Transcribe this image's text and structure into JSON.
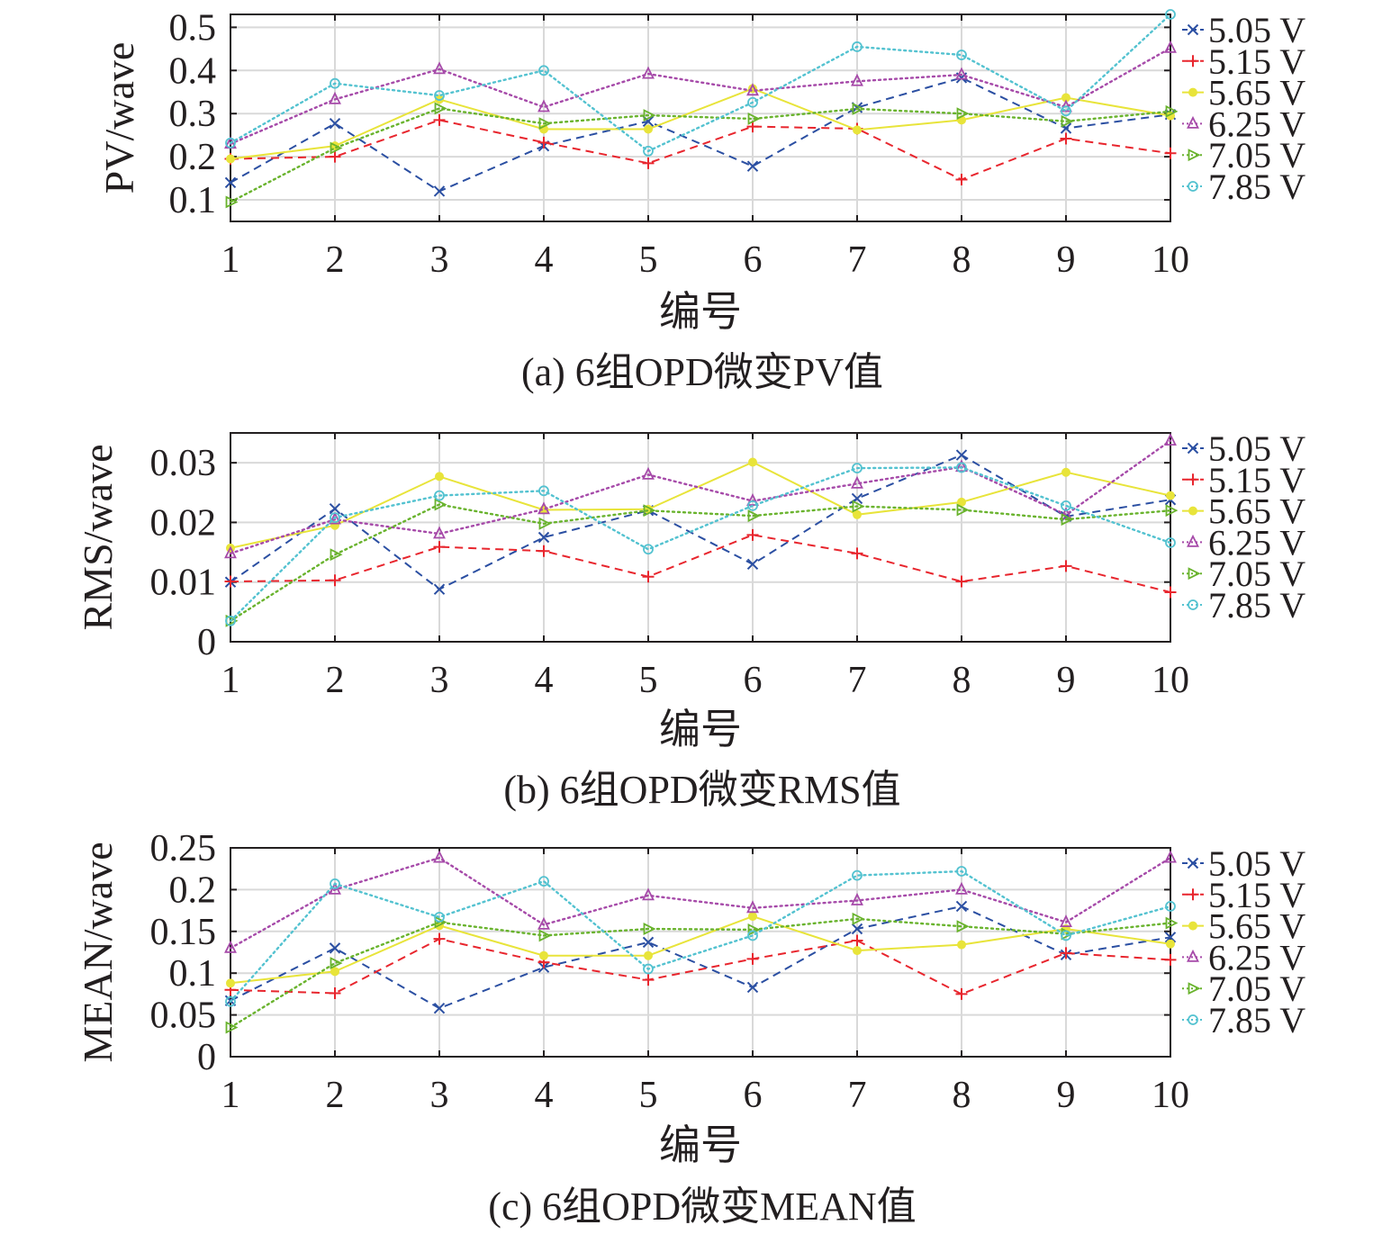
{
  "figure": {
    "series_names": [
      "5.05 V",
      "5.15 V",
      "5.65 V",
      "6.25 V",
      "7.05 V",
      "7.85 V"
    ],
    "series_colors": [
      "#2b4fa2",
      "#e8262e",
      "#e8e43a",
      "#a64aa9",
      "#69b32d",
      "#53c2d0"
    ],
    "series_markers": [
      "cross-x",
      "plus",
      "circle-filled",
      "triangle-up",
      "triangle-right",
      "circle-open"
    ],
    "series_line_styles": [
      "dashed",
      "dashed",
      "solid",
      "dotted",
      "dotted",
      "dotted"
    ]
  },
  "chart_data": [
    {
      "type": "line",
      "caption": "(a) 6组OPD微变PV值",
      "xlabel": "编号",
      "ylabel": "PV/wave",
      "x": [
        1,
        2,
        3,
        4,
        5,
        6,
        7,
        8,
        9,
        10
      ],
      "xlim": [
        1,
        10
      ],
      "ylim": [
        0.05,
        0.53
      ],
      "xticks": [
        "1",
        "2",
        "3",
        "4",
        "5",
        "6",
        "7",
        "8",
        "9",
        "10"
      ],
      "yticks": [
        {
          "value": 0.1,
          "label": "0.1"
        },
        {
          "value": 0.2,
          "label": "0.2"
        },
        {
          "value": 0.3,
          "label": "0.3"
        },
        {
          "value": 0.4,
          "label": "0.4"
        },
        {
          "value": 0.5,
          "label": "0.5"
        }
      ],
      "grid": true,
      "legend_position": "right",
      "series": [
        {
          "name": "5.05 V",
          "values": [
            0.14,
            0.277,
            0.12,
            0.225,
            0.282,
            0.178,
            0.314,
            0.383,
            0.266,
            0.298
          ]
        },
        {
          "name": "5.15 V",
          "values": [
            0.195,
            0.2,
            0.285,
            0.233,
            0.185,
            0.27,
            0.265,
            0.147,
            0.242,
            0.208
          ]
        },
        {
          "name": "5.65 V",
          "values": [
            0.195,
            0.225,
            0.333,
            0.264,
            0.264,
            0.358,
            0.262,
            0.285,
            0.337,
            0.295
          ]
        },
        {
          "name": "6.25 V",
          "values": [
            0.23,
            0.333,
            0.403,
            0.315,
            0.392,
            0.353,
            0.375,
            0.39,
            0.315,
            0.452
          ]
        },
        {
          "name": "7.05 V",
          "values": [
            0.095,
            0.22,
            0.312,
            0.277,
            0.296,
            0.288,
            0.311,
            0.3,
            0.282,
            0.305
          ]
        },
        {
          "name": "7.85 V",
          "values": [
            0.232,
            0.37,
            0.342,
            0.4,
            0.213,
            0.326,
            0.455,
            0.436,
            0.306,
            0.53
          ]
        }
      ]
    },
    {
      "type": "line",
      "caption": "(b) 6组OPD微变RMS值",
      "xlabel": "编号",
      "ylabel": "RMS/wave",
      "x": [
        1,
        2,
        3,
        4,
        5,
        6,
        7,
        8,
        9,
        10
      ],
      "xlim": [
        1,
        10
      ],
      "ylim": [
        0,
        0.035
      ],
      "xticks": [
        "1",
        "2",
        "3",
        "4",
        "5",
        "6",
        "7",
        "8",
        "9",
        "10"
      ],
      "yticks": [
        {
          "value": 0,
          "label": "0"
        },
        {
          "value": 0.01,
          "label": "0.01"
        },
        {
          "value": 0.02,
          "label": "0.02"
        },
        {
          "value": 0.03,
          "label": "0.03"
        }
      ],
      "grid": true,
      "legend_position": "right",
      "series": [
        {
          "name": "5.05 V",
          "values": [
            0.01,
            0.0223,
            0.0088,
            0.0175,
            0.022,
            0.013,
            0.024,
            0.0313,
            0.021,
            0.0238
          ]
        },
        {
          "name": "5.15 V",
          "values": [
            0.0101,
            0.0103,
            0.0159,
            0.0152,
            0.0109,
            0.0179,
            0.0148,
            0.0101,
            0.0127,
            0.0083
          ]
        },
        {
          "name": "5.65 V",
          "values": [
            0.0157,
            0.0195,
            0.0277,
            0.0221,
            0.0222,
            0.0301,
            0.0213,
            0.0234,
            0.0284,
            0.0245
          ]
        },
        {
          "name": "6.25 V",
          "values": [
            0.0148,
            0.0205,
            0.0181,
            0.0222,
            0.028,
            0.0236,
            0.0265,
            0.0293,
            0.0213,
            0.0337
          ]
        },
        {
          "name": "7.05 V",
          "values": [
            0.0035,
            0.0146,
            0.023,
            0.0198,
            0.022,
            0.0211,
            0.0227,
            0.0221,
            0.0205,
            0.022
          ]
        },
        {
          "name": "7.85 V",
          "values": [
            0.0035,
            0.0208,
            0.0245,
            0.0253,
            0.0155,
            0.0228,
            0.0291,
            0.0292,
            0.0228,
            0.0166
          ]
        }
      ]
    },
    {
      "type": "line",
      "caption": "(c) 6组OPD微变MEAN值",
      "xlabel": "编号",
      "ylabel": "MEAN/wave",
      "x": [
        1,
        2,
        3,
        4,
        5,
        6,
        7,
        8,
        9,
        10
      ],
      "xlim": [
        1,
        10
      ],
      "ylim": [
        0,
        0.25
      ],
      "xticks": [
        "1",
        "2",
        "3",
        "4",
        "5",
        "6",
        "7",
        "8",
        "9",
        "10"
      ],
      "yticks": [
        {
          "value": 0,
          "label": "0"
        },
        {
          "value": 0.05,
          "label": "0.05"
        },
        {
          "value": 0.1,
          "label": "0.1"
        },
        {
          "value": 0.15,
          "label": "0.15"
        },
        {
          "value": 0.2,
          "label": "0.2"
        },
        {
          "value": 0.25,
          "label": "0.25"
        }
      ],
      "grid": true,
      "legend_position": "right",
      "series": [
        {
          "name": "5.05 V",
          "values": [
            0.067,
            0.13,
            0.058,
            0.107,
            0.137,
            0.083,
            0.153,
            0.18,
            0.122,
            0.143
          ]
        },
        {
          "name": "5.15 V",
          "values": [
            0.08,
            0.076,
            0.141,
            0.113,
            0.092,
            0.117,
            0.139,
            0.075,
            0.124,
            0.116
          ]
        },
        {
          "name": "5.65 V",
          "values": [
            0.088,
            0.102,
            0.157,
            0.121,
            0.121,
            0.168,
            0.127,
            0.134,
            0.153,
            0.135
          ]
        },
        {
          "name": "6.25 V",
          "values": [
            0.13,
            0.2,
            0.238,
            0.158,
            0.193,
            0.178,
            0.187,
            0.2,
            0.161,
            0.238
          ]
        },
        {
          "name": "7.05 V",
          "values": [
            0.035,
            0.112,
            0.161,
            0.145,
            0.153,
            0.152,
            0.165,
            0.156,
            0.147,
            0.16
          ]
        },
        {
          "name": "7.85 V",
          "values": [
            0.066,
            0.207,
            0.167,
            0.21,
            0.105,
            0.145,
            0.217,
            0.222,
            0.145,
            0.18
          ]
        }
      ]
    }
  ]
}
